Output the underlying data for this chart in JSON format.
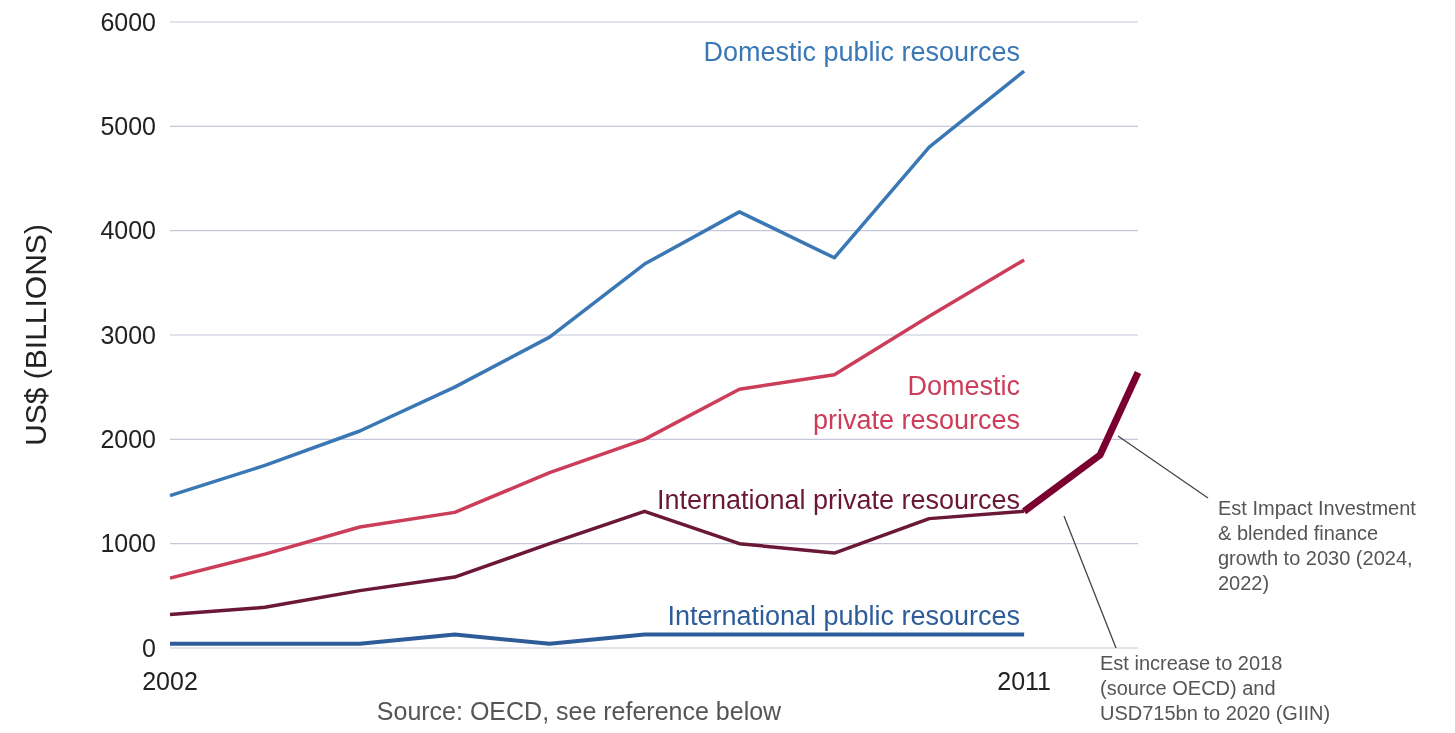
{
  "chart_data": {
    "type": "line",
    "ylabel": "US$ (BILLIONS)",
    "xlim": [
      2002,
      2012.2
    ],
    "xticks": [
      2002,
      2011
    ],
    "ylim": [
      0,
      6000
    ],
    "yticks": [
      0,
      1000,
      2000,
      3000,
      4000,
      5000,
      6000
    ],
    "grid": "y",
    "legend": false,
    "marker": "none",
    "line_style": "solid",
    "x": [
      2002,
      2003,
      2004,
      2005,
      2006,
      2007,
      2008,
      2009,
      2010,
      2011
    ],
    "series": [
      {
        "name": "Domestic public resources",
        "color": "#3a78b5",
        "values": [
          1460,
          1750,
          2080,
          2500,
          2980,
          3680,
          4180,
          3740,
          4800,
          5530
        ]
      },
      {
        "name": "Domestic private resources",
        "color": "#cc3d5a",
        "values": [
          670,
          900,
          1160,
          1300,
          1680,
          2000,
          2480,
          2620,
          3180,
          3720
        ]
      },
      {
        "name": "International private resources",
        "color": "#6b1737",
        "values": [
          320,
          390,
          550,
          680,
          1000,
          1310,
          1000,
          910,
          1240,
          1310
        ]
      },
      {
        "name": "International public resources",
        "color": "#2e5c99",
        "values": [
          40,
          40,
          40,
          130,
          40,
          130,
          130,
          130,
          130,
          130
        ]
      },
      {
        "color": "#7a0030",
        "x": [
          2011,
          2011.8,
          2012.2
        ],
        "values": [
          1310,
          1850,
          2640
        ]
      }
    ],
    "annotations": [
      "Est Impact Investment & blended finance growth to 2030 (2024, 2022)",
      "Est increase to 2018 (source OECD) and USD715bn to 2020 (GIIN)",
      "Source: OECD, see reference below"
    ]
  }
}
